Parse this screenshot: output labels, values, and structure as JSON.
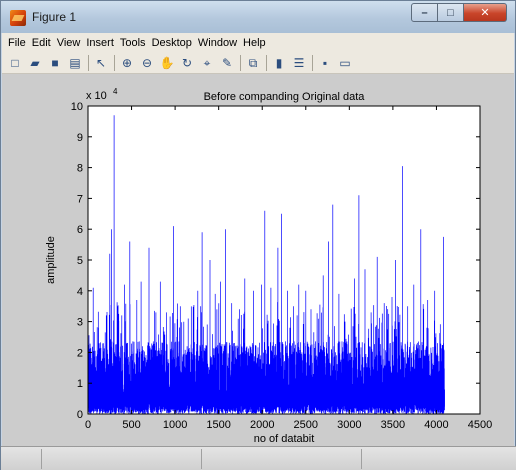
{
  "window": {
    "title": "Figure 1",
    "controls": {
      "minimize": "–",
      "maximize": "□",
      "close": "✕"
    }
  },
  "menu": [
    "File",
    "Edit",
    "View",
    "Insert",
    "Tools",
    "Desktop",
    "Window",
    "Help"
  ],
  "toolbar": [
    {
      "name": "new-figure-icon",
      "glyph": "□"
    },
    {
      "name": "open-file-icon",
      "glyph": "▰"
    },
    {
      "name": "save-icon",
      "glyph": "■"
    },
    {
      "name": "print-icon",
      "glyph": "▤"
    },
    {
      "name": "sep"
    },
    {
      "name": "pointer-icon",
      "glyph": "↖"
    },
    {
      "name": "sep"
    },
    {
      "name": "zoom-in-icon",
      "glyph": "⊕"
    },
    {
      "name": "zoom-out-icon",
      "glyph": "⊖"
    },
    {
      "name": "pan-icon",
      "glyph": "✋"
    },
    {
      "name": "rotate-3d-icon",
      "glyph": "↻"
    },
    {
      "name": "data-cursor-icon",
      "glyph": "⌖"
    },
    {
      "name": "brush-icon",
      "glyph": "✎"
    },
    {
      "name": "sep"
    },
    {
      "name": "link-plot-icon",
      "glyph": "⧉"
    },
    {
      "name": "sep"
    },
    {
      "name": "colorbar-icon",
      "glyph": "▮"
    },
    {
      "name": "legend-icon",
      "glyph": "☰"
    },
    {
      "name": "sep"
    },
    {
      "name": "hide-plot-tools-icon",
      "glyph": "▪"
    },
    {
      "name": "show-plot-tools-icon",
      "glyph": "▭"
    }
  ],
  "chart_data": {
    "type": "line",
    "title": "Before companding Original data",
    "xlabel": "no of databit",
    "ylabel": "amplitude",
    "y_multiplier_label": "x 10",
    "y_multiplier_exponent": "4",
    "xlim": [
      0,
      4500
    ],
    "ylim": [
      0,
      10
    ],
    "xticks": [
      0,
      500,
      1000,
      1500,
      2000,
      2500,
      3000,
      3500,
      4000,
      4500
    ],
    "yticks": [
      0,
      1,
      2,
      3,
      4,
      5,
      6,
      7,
      8,
      9,
      10
    ],
    "grid": false,
    "series_color": "#0000ff",
    "n_points": 4096,
    "baseline_range": [
      0.5,
      2.5
    ],
    "peaks": [
      {
        "x": 60,
        "y": 4.1
      },
      {
        "x": 120,
        "y": 2.8
      },
      {
        "x": 210,
        "y": 3.2
      },
      {
        "x": 250,
        "y": 5.2
      },
      {
        "x": 270,
        "y": 6.0
      },
      {
        "x": 300,
        "y": 9.7
      },
      {
        "x": 340,
        "y": 3.5
      },
      {
        "x": 420,
        "y": 4.2
      },
      {
        "x": 480,
        "y": 5.6
      },
      {
        "x": 560,
        "y": 3.7
      },
      {
        "x": 610,
        "y": 4.3
      },
      {
        "x": 700,
        "y": 5.4
      },
      {
        "x": 780,
        "y": 3.3
      },
      {
        "x": 830,
        "y": 4.3
      },
      {
        "x": 900,
        "y": 3.3
      },
      {
        "x": 980,
        "y": 6.1
      },
      {
        "x": 1060,
        "y": 3.5
      },
      {
        "x": 1150,
        "y": 3.1
      },
      {
        "x": 1260,
        "y": 4.0
      },
      {
        "x": 1310,
        "y": 5.9
      },
      {
        "x": 1400,
        "y": 5.0
      },
      {
        "x": 1460,
        "y": 3.9
      },
      {
        "x": 1520,
        "y": 4.3
      },
      {
        "x": 1580,
        "y": 6.0
      },
      {
        "x": 1650,
        "y": 3.6
      },
      {
        "x": 1740,
        "y": 3.4
      },
      {
        "x": 1800,
        "y": 4.4
      },
      {
        "x": 1900,
        "y": 4.0
      },
      {
        "x": 1990,
        "y": 4.2
      },
      {
        "x": 2030,
        "y": 6.6
      },
      {
        "x": 2100,
        "y": 4.1
      },
      {
        "x": 2180,
        "y": 5.4
      },
      {
        "x": 2220,
        "y": 6.5
      },
      {
        "x": 2290,
        "y": 4.0
      },
      {
        "x": 2360,
        "y": 3.5
      },
      {
        "x": 2420,
        "y": 4.2
      },
      {
        "x": 2500,
        "y": 4.0
      },
      {
        "x": 2560,
        "y": 3.4
      },
      {
        "x": 2700,
        "y": 4.5
      },
      {
        "x": 2760,
        "y": 5.6
      },
      {
        "x": 2810,
        "y": 6.8
      },
      {
        "x": 2880,
        "y": 3.9
      },
      {
        "x": 2950,
        "y": 3.0
      },
      {
        "x": 3060,
        "y": 4.4
      },
      {
        "x": 3110,
        "y": 7.1
      },
      {
        "x": 3180,
        "y": 4.7
      },
      {
        "x": 3250,
        "y": 3.3
      },
      {
        "x": 3320,
        "y": 5.1
      },
      {
        "x": 3400,
        "y": 3.6
      },
      {
        "x": 3490,
        "y": 3.8
      },
      {
        "x": 3530,
        "y": 5.0
      },
      {
        "x": 3610,
        "y": 8.05
      },
      {
        "x": 3670,
        "y": 3.5
      },
      {
        "x": 3740,
        "y": 4.2
      },
      {
        "x": 3820,
        "y": 6.0
      },
      {
        "x": 3900,
        "y": 3.7
      },
      {
        "x": 3980,
        "y": 4.0
      },
      {
        "x": 4080,
        "y": 5.75
      }
    ]
  }
}
